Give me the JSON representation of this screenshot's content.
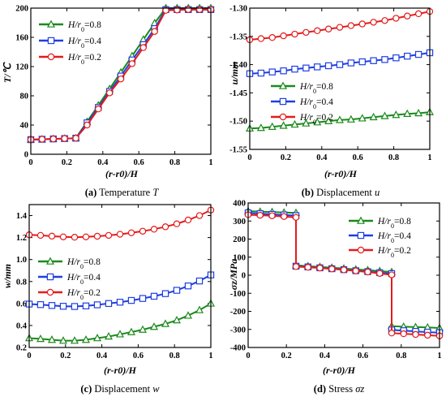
{
  "chart_data": [
    {
      "type": "line",
      "caption": {
        "letter": "(a)",
        "text": "Temperature",
        "symbol": "T"
      },
      "ylabel": "T/℃",
      "xlabel": "(r-r0)/H",
      "xlim": [
        0,
        1
      ],
      "ylim": [
        0,
        200
      ],
      "xticks": [
        "0",
        "0.2",
        "0.4",
        "0.6",
        "0.8",
        "1"
      ],
      "yticks": [
        "0",
        "40",
        "80",
        "120",
        "160",
        "200"
      ],
      "legend_position": "top-left",
      "x": [
        0,
        0.0625,
        0.125,
        0.1875,
        0.25,
        0.3125,
        0.375,
        0.4375,
        0.5,
        0.5625,
        0.625,
        0.6875,
        0.75,
        0.8125,
        0.875,
        0.9375,
        1
      ],
      "series": [
        {
          "name": "H/r0=0.8",
          "color": "#1b8a1b",
          "marker": "triangle",
          "values": [
            20,
            20.5,
            21,
            21.5,
            22,
            44.5,
            67,
            89.5,
            112,
            134.5,
            157,
            179.5,
            200,
            200,
            200,
            200,
            200
          ]
        },
        {
          "name": "H/r0=0.4",
          "color": "#1f3fe0",
          "marker": "square",
          "values": [
            20,
            20.5,
            21,
            21.5,
            22,
            43,
            64,
            86,
            107,
            129,
            150,
            172,
            198,
            198,
            198,
            198,
            198
          ]
        },
        {
          "name": "H/r0=0.2",
          "color": "#e51b1b",
          "marker": "circle",
          "values": [
            20,
            20.5,
            21,
            21.5,
            22,
            40,
            62,
            84,
            103,
            124,
            146,
            168,
            197,
            197.5,
            198,
            198,
            198
          ]
        }
      ]
    },
    {
      "type": "line",
      "caption": {
        "letter": "(b)",
        "text": "Displacement",
        "symbol": "u"
      },
      "ylabel": "u/mm",
      "xlabel": "(r-r0)/H",
      "xlim": [
        0,
        1
      ],
      "ylim": [
        -1.55,
        -1.3
      ],
      "xticks": [
        "0",
        "0.2",
        "0.4",
        "0.6",
        "0.8",
        "1"
      ],
      "yticks": [
        "-1.55",
        "-1.50",
        "-1.45",
        "-1.40",
        "-1.35",
        "-1.30"
      ],
      "legend_position": "lower-left",
      "x": [
        0,
        0.0625,
        0.125,
        0.1875,
        0.25,
        0.3125,
        0.375,
        0.4375,
        0.5,
        0.5625,
        0.625,
        0.6875,
        0.75,
        0.8125,
        0.875,
        0.9375,
        1
      ],
      "series": [
        {
          "name": "H/r0=0.8",
          "color": "#1b8a1b",
          "marker": "triangle",
          "values": [
            -1.513,
            -1.512,
            -1.51,
            -1.508,
            -1.506,
            -1.504,
            -1.502,
            -1.5,
            -1.498,
            -1.497,
            -1.495,
            -1.493,
            -1.491,
            -1.489,
            -1.487,
            -1.486,
            -1.484
          ]
        },
        {
          "name": "H/r0=0.4",
          "color": "#1f3fe0",
          "marker": "square",
          "values": [
            -1.416,
            -1.415,
            -1.413,
            -1.411,
            -1.408,
            -1.406,
            -1.404,
            -1.402,
            -1.4,
            -1.397,
            -1.395,
            -1.393,
            -1.391,
            -1.388,
            -1.385,
            -1.382,
            -1.379
          ]
        },
        {
          "name": "H/r0=0.2",
          "color": "#e51b1b",
          "marker": "circle",
          "values": [
            -1.356,
            -1.354,
            -1.352,
            -1.349,
            -1.346,
            -1.343,
            -1.34,
            -1.337,
            -1.334,
            -1.331,
            -1.328,
            -1.325,
            -1.322,
            -1.318,
            -1.314,
            -1.31,
            -1.306
          ]
        }
      ]
    },
    {
      "type": "line",
      "caption": {
        "letter": "(c)",
        "text": "Displacement",
        "symbol": "w"
      },
      "ylabel": "w/mm",
      "xlabel": "(r-r0)/H",
      "xlim": [
        0,
        1
      ],
      "ylim": [
        0.2,
        1.5
      ],
      "xticks": [
        "0",
        "0.2",
        "0.4",
        "0.6",
        "0.8",
        "1"
      ],
      "yticks": [
        "0.2",
        "0.4",
        "0.6",
        "0.8",
        "1.0",
        "1.2",
        "1.4"
      ],
      "legend_position": "center-left",
      "x": [
        0,
        0.0625,
        0.125,
        0.1875,
        0.25,
        0.3125,
        0.375,
        0.4375,
        0.5,
        0.5625,
        0.625,
        0.6875,
        0.75,
        0.8125,
        0.875,
        0.9375,
        1
      ],
      "series": [
        {
          "name": "H/r0=0.8",
          "color": "#1b8a1b",
          "marker": "triangle",
          "values": [
            0.285,
            0.278,
            0.27,
            0.262,
            0.262,
            0.27,
            0.285,
            0.3,
            0.32,
            0.34,
            0.362,
            0.388,
            0.415,
            0.448,
            0.49,
            0.54,
            0.6
          ]
        },
        {
          "name": "H/r0=0.4",
          "color": "#1f3fe0",
          "marker": "square",
          "values": [
            0.595,
            0.59,
            0.582,
            0.575,
            0.573,
            0.578,
            0.588,
            0.6,
            0.612,
            0.628,
            0.646,
            0.666,
            0.69,
            0.72,
            0.76,
            0.805,
            0.86
          ]
        },
        {
          "name": "H/r0=0.2",
          "color": "#e51b1b",
          "marker": "circle",
          "values": [
            1.225,
            1.22,
            1.213,
            1.206,
            1.203,
            1.206,
            1.212,
            1.22,
            1.23,
            1.243,
            1.258,
            1.276,
            1.298,
            1.325,
            1.36,
            1.4,
            1.45
          ]
        }
      ]
    },
    {
      "type": "line",
      "caption": {
        "letter": "(d)",
        "text": "Stress",
        "symbol": "σz"
      },
      "ylabel": "σz/MPa",
      "xlabel": "(r-r0)/H",
      "xlim": [
        0,
        1
      ],
      "ylim": [
        -400,
        400
      ],
      "xticks": [
        "0",
        "0.2",
        "0.4",
        "0.6",
        "0.8",
        "1"
      ],
      "yticks": [
        "-400",
        "-300",
        "-200",
        "-100",
        "0",
        "100",
        "200",
        "300",
        "400"
      ],
      "legend_position": "top-right",
      "x": [
        0,
        0.0625,
        0.125,
        0.1875,
        0.25,
        0.25,
        0.3125,
        0.375,
        0.4375,
        0.5,
        0.5625,
        0.625,
        0.6875,
        0.75,
        0.75,
        0.8125,
        0.875,
        0.9375,
        1
      ],
      "series": [
        {
          "name": "H/r0=0.8",
          "color": "#1b8a1b",
          "marker": "triangle",
          "values": [
            355,
            352,
            350,
            347,
            345,
            55,
            50,
            46,
            42,
            37,
            32,
            28,
            23,
            18,
            -282,
            -285,
            -287,
            -289,
            -292
          ]
        },
        {
          "name": "H/r0=0.4",
          "color": "#1f3fe0",
          "marker": "square",
          "values": [
            345,
            341,
            337,
            334,
            330,
            50,
            46,
            41,
            36,
            31,
            25,
            20,
            14,
            9,
            -303,
            -307,
            -311,
            -315,
            -318
          ]
        },
        {
          "name": "H/r0=0.2",
          "color": "#e51b1b",
          "marker": "circle",
          "values": [
            335,
            332,
            329,
            325,
            320,
            48,
            44,
            40,
            35,
            30,
            24,
            18,
            10,
            2,
            -320,
            -324,
            -328,
            -332,
            -336
          ]
        }
      ]
    }
  ]
}
